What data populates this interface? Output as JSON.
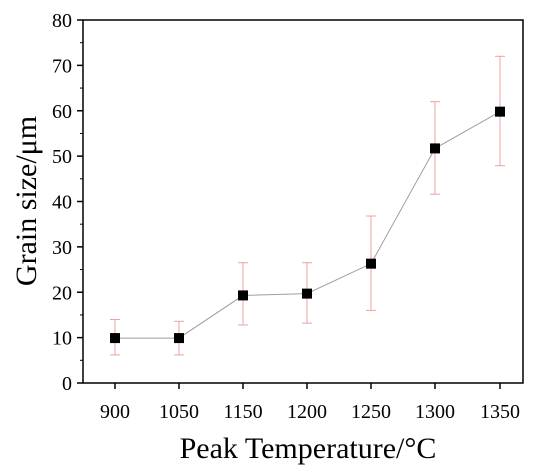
{
  "chart_data": {
    "type": "line",
    "xlabel": "Peak Temperature/°C",
    "ylabel": "Grain size/μm",
    "categories": [
      "900",
      "1050",
      "1150",
      "1200",
      "1250",
      "1300",
      "1350"
    ],
    "ylim": [
      0,
      80
    ],
    "yticks": [
      0,
      10,
      20,
      30,
      40,
      50,
      60,
      70,
      80
    ],
    "grid": false,
    "series": [
      {
        "values": [
          9.9,
          9.9,
          19.3,
          19.7,
          26.3,
          51.7,
          59.8
        ],
        "error_low": [
          6.2,
          6.2,
          12.8,
          13.2,
          16.0,
          41.6,
          47.9
        ],
        "error_high": [
          14.0,
          13.6,
          26.5,
          26.5,
          36.8,
          62.0,
          72.0
        ],
        "marker": "square",
        "marker_color": "#000000",
        "line_color": "#9e9e9e",
        "error_color": "#f0a0a0"
      }
    ]
  }
}
